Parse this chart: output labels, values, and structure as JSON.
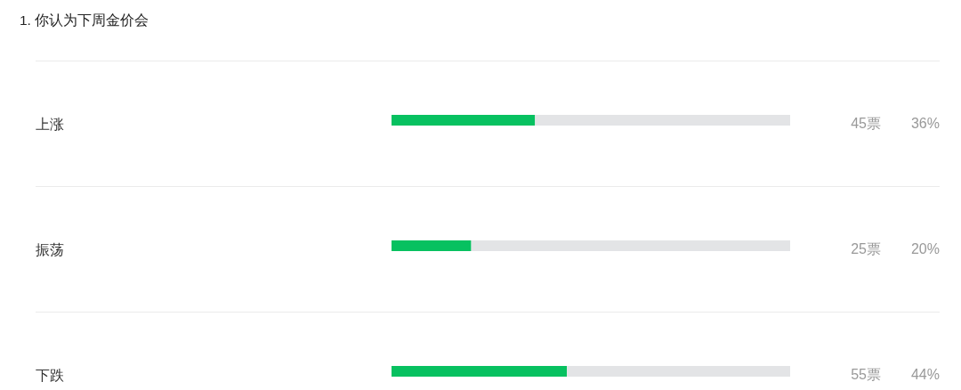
{
  "chart_data": {
    "type": "bar",
    "orientation": "horizontal",
    "stacked": true,
    "title": "1. 你认为下周金价会",
    "categories": [
      "上涨",
      "振荡",
      "下跌"
    ],
    "xlim": [
      0,
      100
    ],
    "tick_labels": "y",
    "series": [
      {
        "color": "#07c160",
        "values": [
          36,
          20,
          44
        ],
        "value_labels": [
          "36%",
          "20%",
          "44%"
        ]
      },
      {
        "color": "#e3e4e6",
        "values": [
          64,
          80,
          56
        ]
      }
    ],
    "annotations": [
      "45票",
      "25票",
      "55票"
    ]
  }
}
